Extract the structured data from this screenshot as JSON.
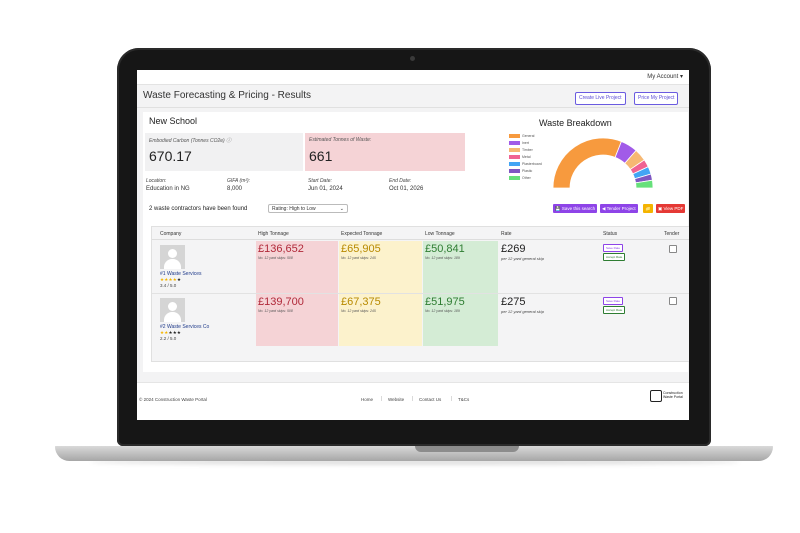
{
  "header": {
    "account_label": "My Account ▾"
  },
  "titlebar": {
    "title": "Waste Forecasting & Pricing - Results",
    "create_live_project": "Create Live Project",
    "price_my_project": "Price My Project"
  },
  "project": {
    "name": "New School",
    "embodied_carbon_label": "Embodied Carbon (Tonnes CO2e) ⓘ",
    "embodied_carbon_value": "670.17",
    "estimated_waste_label": "Estimated Tonnes of Waste:",
    "estimated_waste_value": "661",
    "location_label": "Location:",
    "location_value": "Education in NG",
    "gifa_label": "GIFA (m²):",
    "gifa_value": "8,000",
    "start_label": "Start Date:",
    "start_value": "Jun 01, 2024",
    "end_label": "End Date:",
    "end_value": "Oct 01, 2026"
  },
  "chart_data": {
    "type": "pie",
    "title": "Waste Breakdown",
    "categories": [
      "General",
      "Inert",
      "Timber",
      "Metal",
      "Plasterboard",
      "Plastic",
      "Other"
    ],
    "values": [
      62,
      11,
      8,
      5,
      5,
      4,
      5
    ],
    "colors": [
      "#f79a3e",
      "#a15be8",
      "#f6b873",
      "#f06292",
      "#42a5f5",
      "#7e57c2",
      "#66e07a"
    ],
    "donut": true,
    "half": true
  },
  "results": {
    "summary": "2 waste contractors have been found",
    "sort_value": "Rating: High to Low",
    "save_search": "💾 Save this search",
    "tender_project": "◀ Tender Project",
    "export": "📁",
    "view_pdf": "▣ View PDF"
  },
  "table": {
    "columns": [
      "Company",
      "High Tonnage",
      "Expected Tonnage",
      "Low Tonnage",
      "Rate",
      "Status",
      "Tender"
    ],
    "rows": [
      {
        "company": "#1 Waste Services",
        "stars": "★★★★★",
        "score": "3.4 / 5.0",
        "high": "£136,652",
        "high_sub": "No. 12 yard skips: 508",
        "expected": "£65,905",
        "expected_sub": "No. 12 yard skips: 245",
        "low": "£50,841",
        "low_sub": "No. 12 yard skips: 189",
        "rate": "£269",
        "rate_sub": "per 12 yard general skip",
        "status_save": "Save Rate",
        "status_accept": "Accept Rate"
      },
      {
        "company": "#2 Waste Services Co",
        "stars": "★★★★★",
        "score": "2.2 / 5.0",
        "high": "£139,700",
        "high_sub": "No. 12 yard skips: 508",
        "expected": "£67,375",
        "expected_sub": "No. 12 yard skips: 245",
        "low": "£51,975",
        "low_sub": "No. 12 yard skips: 189",
        "rate": "£275",
        "rate_sub": "per 12 yard general skip",
        "status_save": "Save Rate",
        "status_accept": "Accept Rate"
      }
    ]
  },
  "footer": {
    "copyright": "© 2024 Construction Waste Portal",
    "links": [
      "Home",
      "Website",
      "Contact Us",
      "T&Cs"
    ],
    "logo_text": "Construction Waste Portal"
  },
  "colors": {
    "accent": "#6a5be0",
    "high_bg": "#f5d3d6",
    "expected_bg": "#fcf2cc",
    "low_bg": "#d4ecd5",
    "pdf_button": "#e53935",
    "export_button": "#f4b400"
  }
}
